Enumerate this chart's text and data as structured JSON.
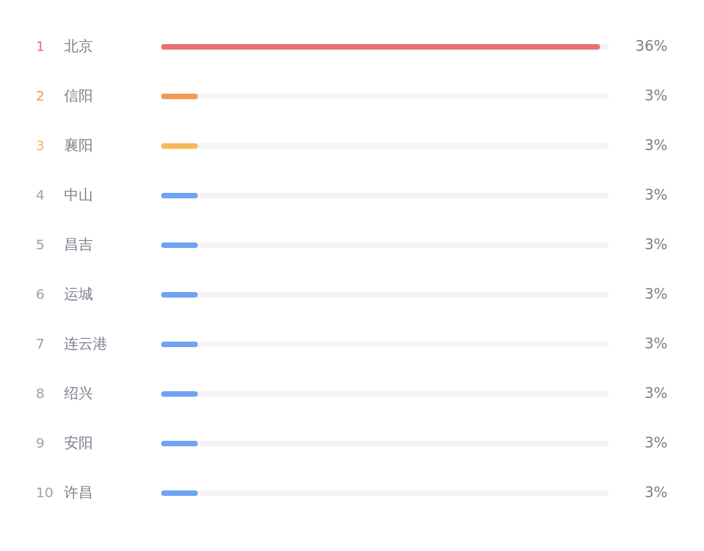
{
  "chart_data": {
    "type": "bar",
    "orientation": "horizontal",
    "categories": [
      "北京",
      "信阳",
      "襄阳",
      "中山",
      "昌吉",
      "运城",
      "连云港",
      "绍兴",
      "安阳",
      "许昌"
    ],
    "values": [
      36,
      3,
      3,
      3,
      3,
      3,
      3,
      3,
      3,
      3
    ],
    "colors": [
      "#ec6f6f",
      "#f29a52",
      "#f5b95a",
      "#6fa3f2",
      "#6fa3f2",
      "#6fa3f2",
      "#6fa3f2",
      "#6fa3f2",
      "#6fa3f2",
      "#6fa3f2"
    ],
    "value_labels": [
      "36%",
      "3%",
      "3%",
      "3%",
      "3%",
      "3%",
      "3%",
      "3%",
      "3%",
      "3%"
    ],
    "annotations": [
      "1",
      "2",
      "3",
      "4",
      "5",
      "6",
      "7",
      "8",
      "9",
      "10"
    ]
  }
}
